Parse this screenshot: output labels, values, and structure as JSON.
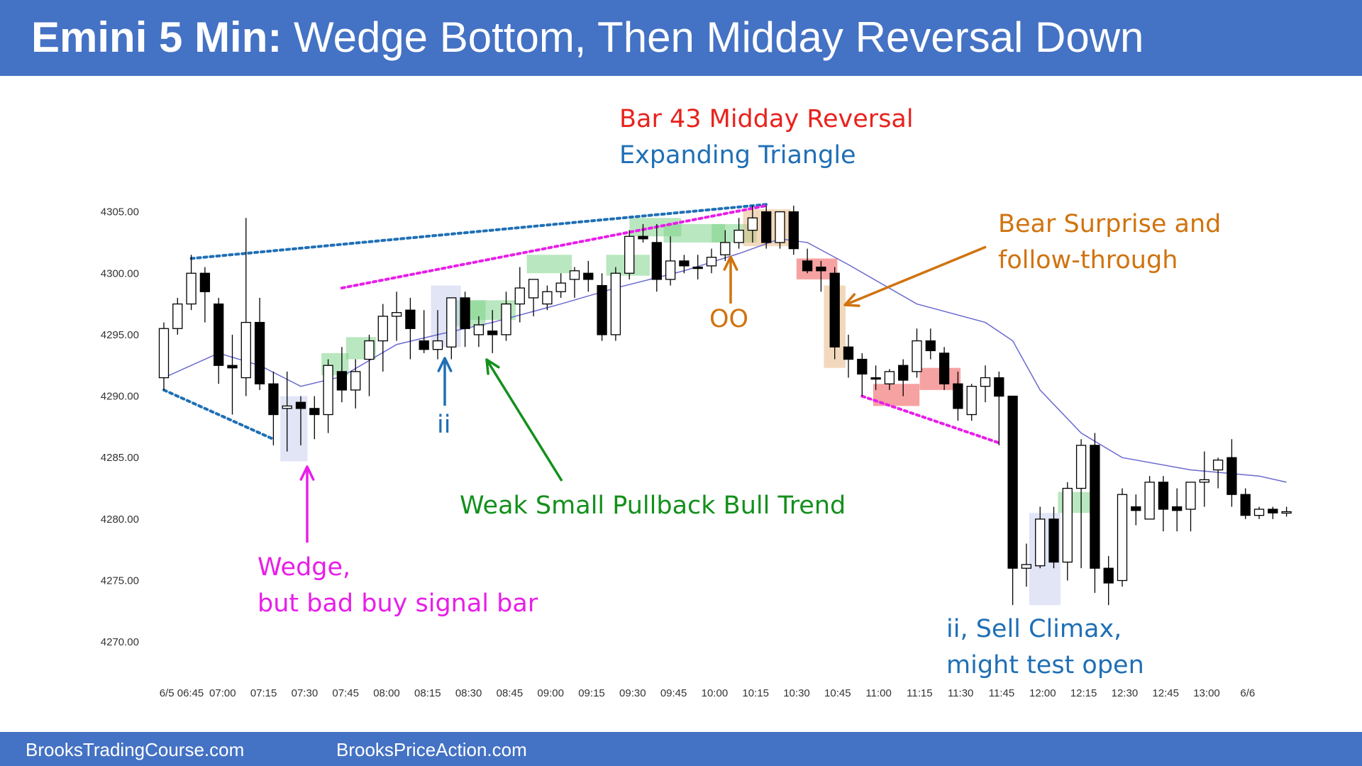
{
  "title": {
    "bold": "Emini 5 Min:",
    "rest": " Wedge Bottom, Then Midday Reversal Down"
  },
  "footer": {
    "left": "BrooksTradingCourse.com",
    "right": "BrooksPriceAction.com"
  },
  "colors": {
    "header": "#4472c4",
    "bull_bar": "#ffffff",
    "bear_bar": "#000000",
    "ema": "#6a6acf",
    "magenta": "#e81ee8",
    "blue": "#1f6fb5",
    "green": "#13901c",
    "orange": "#d0730f",
    "red": "#e8221d"
  },
  "annotations": {
    "midday_reversal": "Bar 43 Midday Reversal",
    "expanding_triangle": "Expanding Triangle",
    "bear_surprise_1": "Bear Surprise and",
    "bear_surprise_2": "follow-through",
    "oo": "OO",
    "ii_top": "ii",
    "weak_trend": "Weak Small Pullback Bull Trend",
    "wedge_1": "Wedge,",
    "wedge_2": "but bad buy signal bar",
    "sell_climax_1": "ii, Sell Climax,",
    "sell_climax_2": "might test open"
  },
  "chart_data": {
    "type": "candlestick",
    "ylim": [
      4268,
      4307
    ],
    "y_ticks": [
      "4305.00",
      "4300.00",
      "4295.00",
      "4290.00",
      "4285.00",
      "4280.00",
      "4275.00",
      "4270.00"
    ],
    "x_ticks": [
      "6/5 06:45",
      "07:00",
      "07:15",
      "07:30",
      "07:45",
      "08:00",
      "08:15",
      "08:30",
      "08:45",
      "09:00",
      "09:15",
      "09:30",
      "09:45",
      "10:00",
      "10:15",
      "10:30",
      "10:45",
      "11:00",
      "11:15",
      "11:30",
      "11:45",
      "12:00",
      "12:15",
      "12:30",
      "12:45",
      "13:00",
      "6/6"
    ],
    "bars": [
      {
        "o": 4291.5,
        "h": 4296,
        "l": 4290.5,
        "c": 4295.5
      },
      {
        "o": 4295.5,
        "h": 4298,
        "l": 4295,
        "c": 4297.5
      },
      {
        "o": 4297.5,
        "h": 4301.5,
        "l": 4297,
        "c": 4300
      },
      {
        "o": 4300,
        "h": 4300.5,
        "l": 4296,
        "c": 4298.5
      },
      {
        "o": 4297.5,
        "h": 4298,
        "l": 4291,
        "c": 4292.5
      },
      {
        "o": 4292.5,
        "h": 4295,
        "l": 4288.5,
        "c": 4292.3
      },
      {
        "o": 4291.5,
        "h": 4304.5,
        "l": 4290,
        "c": 4296
      },
      {
        "o": 4296,
        "h": 4298,
        "l": 4290.5,
        "c": 4291
      },
      {
        "o": 4291,
        "h": 4292,
        "l": 4286,
        "c": 4288.5
      },
      {
        "o": 4289,
        "h": 4292,
        "l": 4285.5,
        "c": 4289.2
      },
      {
        "o": 4289.5,
        "h": 4290,
        "l": 4286,
        "c": 4289
      },
      {
        "o": 4289,
        "h": 4290,
        "l": 4286.5,
        "c": 4288.5
      },
      {
        "o": 4288.5,
        "h": 4293,
        "l": 4287,
        "c": 4292.5
      },
      {
        "o": 4292,
        "h": 4294,
        "l": 4289.5,
        "c": 4290.5
      },
      {
        "o": 4290.5,
        "h": 4293,
        "l": 4289,
        "c": 4292
      },
      {
        "o": 4293,
        "h": 4295,
        "l": 4290,
        "c": 4294.5
      },
      {
        "o": 4294.5,
        "h": 4297.5,
        "l": 4292,
        "c": 4296.5
      },
      {
        "o": 4296.5,
        "h": 4298.5,
        "l": 4294.5,
        "c": 4296.8
      },
      {
        "o": 4297,
        "h": 4298,
        "l": 4293,
        "c": 4295.5
      },
      {
        "o": 4294.5,
        "h": 4297,
        "l": 4293.5,
        "c": 4293.8
      },
      {
        "o": 4293.8,
        "h": 4297,
        "l": 4293,
        "c": 4294.5
      },
      {
        "o": 4294,
        "h": 4298,
        "l": 4293,
        "c": 4298
      },
      {
        "o": 4298,
        "h": 4298.5,
        "l": 4294,
        "c": 4295.5
      },
      {
        "o": 4295,
        "h": 4296.5,
        "l": 4294,
        "c": 4295.8
      },
      {
        "o": 4295.3,
        "h": 4297,
        "l": 4293.5,
        "c": 4295
      },
      {
        "o": 4295,
        "h": 4298.5,
        "l": 4294.5,
        "c": 4297.5
      },
      {
        "o": 4297.5,
        "h": 4300.5,
        "l": 4296,
        "c": 4298.8
      },
      {
        "o": 4298,
        "h": 4299.5,
        "l": 4296.5,
        "c": 4299.5
      },
      {
        "o": 4297.5,
        "h": 4299,
        "l": 4297,
        "c": 4298.5
      },
      {
        "o": 4298.5,
        "h": 4300,
        "l": 4298,
        "c": 4299.2
      },
      {
        "o": 4299.5,
        "h": 4300.5,
        "l": 4298,
        "c": 4300.2
      },
      {
        "o": 4300,
        "h": 4301,
        "l": 4298.5,
        "c": 4299.5
      },
      {
        "o": 4299,
        "h": 4300,
        "l": 4294.5,
        "c": 4295
      },
      {
        "o": 4295,
        "h": 4300.5,
        "l": 4294.5,
        "c": 4300
      },
      {
        "o": 4300,
        "h": 4303.5,
        "l": 4299.5,
        "c": 4303
      },
      {
        "o": 4303,
        "h": 4304,
        "l": 4302.5,
        "c": 4302.8
      },
      {
        "o": 4302.5,
        "h": 4304,
        "l": 4298.5,
        "c": 4299.5
      },
      {
        "o": 4299.5,
        "h": 4303,
        "l": 4299,
        "c": 4301
      },
      {
        "o": 4301,
        "h": 4301.5,
        "l": 4300,
        "c": 4300.6
      },
      {
        "o": 4300.5,
        "h": 4301.5,
        "l": 4299.5,
        "c": 4300.4
      },
      {
        "o": 4300.6,
        "h": 4302,
        "l": 4300,
        "c": 4301.3
      },
      {
        "o": 4301.5,
        "h": 4303.5,
        "l": 4301,
        "c": 4302.5
      },
      {
        "o": 4302.5,
        "h": 4304.5,
        "l": 4302,
        "c": 4303.5
      },
      {
        "o": 4303.5,
        "h": 4305.5,
        "l": 4302.5,
        "c": 4304.5
      },
      {
        "o": 4305,
        "h": 4305.5,
        "l": 4302,
        "c": 4302.5
      },
      {
        "o": 4302.5,
        "h": 4305,
        "l": 4302,
        "c": 4305
      },
      {
        "o": 4305,
        "h": 4305.5,
        "l": 4301.5,
        "c": 4302
      },
      {
        "o": 4301,
        "h": 4302,
        "l": 4300,
        "c": 4300.2
      },
      {
        "o": 4300.5,
        "h": 4301,
        "l": 4298.5,
        "c": 4300.2
      },
      {
        "o": 4300,
        "h": 4300.5,
        "l": 4293,
        "c": 4294
      },
      {
        "o": 4294,
        "h": 4295,
        "l": 4291.5,
        "c": 4293
      },
      {
        "o": 4293,
        "h": 4293.5,
        "l": 4290,
        "c": 4291.8
      },
      {
        "o": 4291.5,
        "h": 4292.5,
        "l": 4290.5,
        "c": 4291.4
      },
      {
        "o": 4291,
        "h": 4292.2,
        "l": 4290.5,
        "c": 4292
      },
      {
        "o": 4292.5,
        "h": 4293,
        "l": 4290,
        "c": 4291.3
      },
      {
        "o": 4292,
        "h": 4295.5,
        "l": 4291.5,
        "c": 4294.5
      },
      {
        "o": 4294.5,
        "h": 4295.5,
        "l": 4293,
        "c": 4293.7
      },
      {
        "o": 4293.5,
        "h": 4294,
        "l": 4290.5,
        "c": 4291
      },
      {
        "o": 4291,
        "h": 4292,
        "l": 4288,
        "c": 4289
      },
      {
        "o": 4288.5,
        "h": 4291,
        "l": 4288,
        "c": 4290.8
      },
      {
        "o": 4290.8,
        "h": 4292.5,
        "l": 4289.5,
        "c": 4291.5
      },
      {
        "o": 4291.5,
        "h": 4292,
        "l": 4286,
        "c": 4290
      },
      {
        "o": 4290,
        "h": 4290,
        "l": 4273,
        "c": 4276
      },
      {
        "o": 4276,
        "h": 4278,
        "l": 4274.5,
        "c": 4276.3
      },
      {
        "o": 4276.2,
        "h": 4281,
        "l": 4276,
        "c": 4280
      },
      {
        "o": 4280,
        "h": 4281,
        "l": 4276,
        "c": 4276.5
      },
      {
        "o": 4276.5,
        "h": 4283,
        "l": 4275,
        "c": 4282.5
      },
      {
        "o": 4282.5,
        "h": 4286.5,
        "l": 4276,
        "c": 4286
      },
      {
        "o": 4286,
        "h": 4287,
        "l": 4274,
        "c": 4276
      },
      {
        "o": 4276,
        "h": 4277,
        "l": 4273,
        "c": 4274.8
      },
      {
        "o": 4275,
        "h": 4282.5,
        "l": 4274.5,
        "c": 4282
      },
      {
        "o": 4281,
        "h": 4282,
        "l": 4279.5,
        "c": 4280.7
      },
      {
        "o": 4280,
        "h": 4283.5,
        "l": 4280,
        "c": 4283
      },
      {
        "o": 4283,
        "h": 4283.5,
        "l": 4279,
        "c": 4280.8
      },
      {
        "o": 4281,
        "h": 4282.5,
        "l": 4279,
        "c": 4280.7
      },
      {
        "o": 4280.8,
        "h": 4283,
        "l": 4279,
        "c": 4283
      },
      {
        "o": 4283,
        "h": 4285.5,
        "l": 4281,
        "c": 4283.2
      },
      {
        "o": 4284,
        "h": 4285,
        "l": 4282.5,
        "c": 4284.8
      },
      {
        "o": 4285,
        "h": 4286.5,
        "l": 4281,
        "c": 4282
      },
      {
        "o": 4282,
        "h": 4282.5,
        "l": 4280,
        "c": 4280.3
      },
      {
        "o": 4280.3,
        "h": 4281,
        "l": 4280,
        "c": 4280.8
      },
      {
        "o": 4280.8,
        "h": 4281,
        "l": 4280,
        "c": 4280.5
      },
      {
        "o": 4280.5,
        "h": 4281,
        "l": 4280.2,
        "c": 4280.6
      }
    ],
    "ema": [
      [
        0,
        4291.5
      ],
      [
        4,
        4293.5
      ],
      [
        7,
        4292.5
      ],
      [
        10,
        4290.8
      ],
      [
        13,
        4291.6
      ],
      [
        17,
        4294.2
      ],
      [
        20,
        4295
      ],
      [
        24,
        4296
      ],
      [
        29,
        4297.5
      ],
      [
        33,
        4298.8
      ],
      [
        38,
        4300.2
      ],
      [
        42,
        4301.6
      ],
      [
        45,
        4302.8
      ],
      [
        47,
        4302.5
      ],
      [
        50,
        4300.7
      ],
      [
        55,
        4297.5
      ],
      [
        60,
        4296
      ],
      [
        62,
        4294.5
      ],
      [
        64,
        4290.5
      ],
      [
        67,
        4287
      ],
      [
        70,
        4285
      ],
      [
        75,
        4284
      ],
      [
        80,
        4283.5
      ],
      [
        82,
        4283
      ]
    ]
  }
}
